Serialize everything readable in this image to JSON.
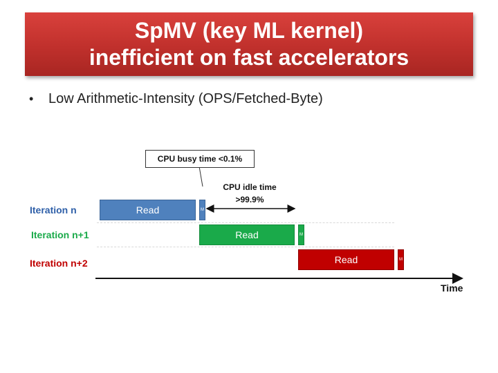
{
  "title": {
    "line1": "SpMV (key ML kernel)",
    "line2": "inefficient on fast accelerators"
  },
  "bullet": {
    "marker": "•",
    "text": "Low Arithmetic-Intensity (OPS/Fetched-Byte)"
  },
  "callout": {
    "text": "CPU busy time <0.1%"
  },
  "idle_note": {
    "line1": "CPU idle time",
    "line2": ">99.9%"
  },
  "timeline": {
    "axis_label": "Time",
    "rows": [
      {
        "label": "Iteration n",
        "read_label": "Read",
        "m_label": "M",
        "color": "#4f81bd"
      },
      {
        "label": "Iteration n+1",
        "read_label": "Read",
        "m_label": "M",
        "color": "#1aaa4a"
      },
      {
        "label": "Iteration n+2",
        "read_label": "Read",
        "m_label": "M",
        "color": "#c00000"
      }
    ]
  },
  "colors": {
    "title_banner": "#c0302c",
    "row_n_label": "#2e5fa8",
    "row_n1_label": "#1aaa4a",
    "row_n2_label": "#c00000"
  }
}
